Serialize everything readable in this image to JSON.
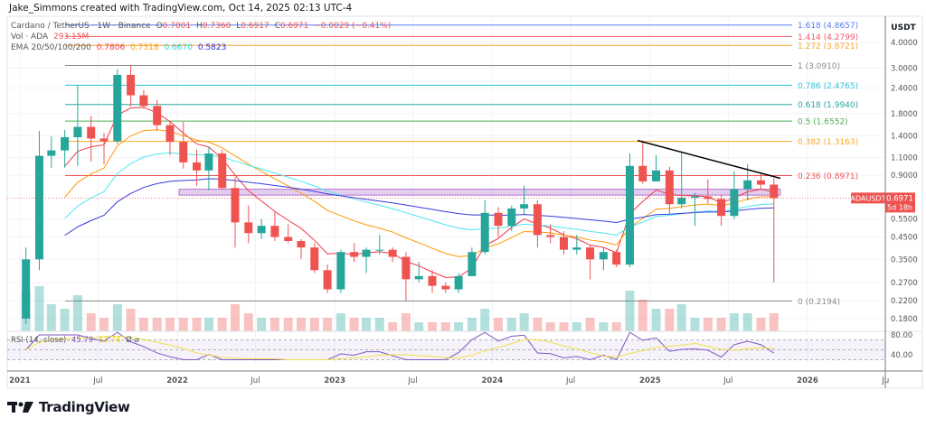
{
  "credit": "Jake_Simmons created with TradingView.com, Oct 14, 2025 02:13 UTC-4",
  "legend": {
    "symbol": "Cardano / TetherUS · 1W · Binance",
    "o_label": "O",
    "o": "0.7001",
    "h_label": "H",
    "h": "0.7360",
    "l_label": "L",
    "l": "0.6917",
    "c_label": "C",
    "c": "0.6971",
    "change": "−0.0029 (−0.41%)",
    "vol_label": "Vol · ADA",
    "vol": "293.15M",
    "ema_label": "EMA 20/50/100/200",
    "ema_values": [
      "0.7806",
      "0.7318",
      "0.6670",
      "0.5823"
    ],
    "rsi_label": "RSI (14, close)",
    "rsi_values": [
      "45.79",
      "53.74"
    ],
    "rsi_extra": "Ø  ⌀"
  },
  "colors": {
    "up": "#26a69a",
    "down": "#ef5350",
    "ema": [
      "#f23645",
      "#ff9800",
      "#4de6f0",
      "#3b3be0"
    ],
    "rsi": "#7e57c2",
    "rsi_ma": "#f2e14a",
    "zone": "#c9a6e0",
    "trendline": "#000000"
  },
  "chart_data": {
    "type": "candlestick",
    "title": "Cardano / TetherUS · 1W · Binance",
    "y_scale": "log",
    "y_unit": "USDT",
    "ylim": [
      0.156,
      5.37
    ],
    "xlim": [
      "2020-12-10",
      "2026-07-20"
    ],
    "y_ticks": [
      "4.0000",
      "3.0000",
      "2.4000",
      "1.8000",
      "1.4000",
      "1.1000",
      "0.9000",
      "0.5500",
      "0.4500",
      "0.3500",
      "0.2700",
      "0.2200",
      "0.1800"
    ],
    "x_ticks": [
      {
        "label": "2021",
        "date": "2021-01-01"
      },
      {
        "label": "Jul",
        "date": "2021-07-01"
      },
      {
        "label": "2022",
        "date": "2022-01-01"
      },
      {
        "label": "Jul",
        "date": "2022-07-01"
      },
      {
        "label": "2023",
        "date": "2023-01-01"
      },
      {
        "label": "Jul",
        "date": "2023-07-01"
      },
      {
        "label": "2024",
        "date": "2024-01-01"
      },
      {
        "label": "Jul",
        "date": "2024-07-01"
      },
      {
        "label": "2025",
        "date": "2025-01-01"
      },
      {
        "label": "Jul",
        "date": "2025-07-01"
      },
      {
        "label": "2026",
        "date": "2026-01-01"
      },
      {
        "label": "Ju",
        "date": "2026-07-01"
      }
    ],
    "grid": true,
    "candles_ohlc": [
      [
        "2021-01",
        0.18,
        0.4,
        0.17,
        0.35
      ],
      [
        "2021-02",
        0.35,
        1.48,
        0.31,
        1.12
      ],
      [
        "2021-03",
        1.12,
        1.39,
        0.98,
        1.19
      ],
      [
        "2021-04",
        1.19,
        1.5,
        0.98,
        1.38
      ],
      [
        "2021-05",
        1.38,
        2.47,
        1.0,
        1.55
      ],
      [
        "2021-06",
        1.55,
        1.75,
        1.05,
        1.36
      ],
      [
        "2021-07",
        1.36,
        1.45,
        1.02,
        1.32
      ],
      [
        "2021-08",
        1.32,
        2.96,
        1.28,
        2.78
      ],
      [
        "2021-09",
        2.78,
        3.1,
        1.95,
        2.21
      ],
      [
        "2021-10",
        2.21,
        2.35,
        1.9,
        1.96
      ],
      [
        "2021-11",
        1.96,
        2.1,
        1.48,
        1.58
      ],
      [
        "2021-12",
        1.58,
        1.65,
        1.13,
        1.31
      ],
      [
        "2022-01",
        1.31,
        1.64,
        0.97,
        1.04
      ],
      [
        "2022-02",
        1.04,
        1.2,
        0.8,
        0.95
      ],
      [
        "2022-03",
        0.95,
        1.24,
        0.76,
        1.15
      ],
      [
        "2022-04",
        1.15,
        1.2,
        0.77,
        0.78
      ],
      [
        "2022-05",
        0.78,
        0.88,
        0.4,
        0.53
      ],
      [
        "2022-06",
        0.53,
        0.64,
        0.42,
        0.47
      ],
      [
        "2022-07",
        0.47,
        0.55,
        0.44,
        0.51
      ],
      [
        "2022-08",
        0.51,
        0.6,
        0.43,
        0.45
      ],
      [
        "2022-09",
        0.45,
        0.52,
        0.42,
        0.43
      ],
      [
        "2022-10",
        0.43,
        0.44,
        0.35,
        0.4
      ],
      [
        "2022-11",
        0.4,
        0.42,
        0.3,
        0.31
      ],
      [
        "2022-12",
        0.31,
        0.33,
        0.24,
        0.25
      ],
      [
        "2023-01",
        0.25,
        0.39,
        0.24,
        0.38
      ],
      [
        "2023-02",
        0.38,
        0.42,
        0.34,
        0.36
      ],
      [
        "2023-03",
        0.36,
        0.4,
        0.3,
        0.39
      ],
      [
        "2023-04",
        0.39,
        0.46,
        0.37,
        0.39
      ],
      [
        "2023-05",
        0.39,
        0.4,
        0.34,
        0.36
      ],
      [
        "2023-06",
        0.36,
        0.38,
        0.22,
        0.28
      ],
      [
        "2023-07",
        0.28,
        0.34,
        0.27,
        0.29
      ],
      [
        "2023-08",
        0.29,
        0.31,
        0.24,
        0.26
      ],
      [
        "2023-09",
        0.26,
        0.27,
        0.24,
        0.25
      ],
      [
        "2023-10",
        0.25,
        0.3,
        0.24,
        0.29
      ],
      [
        "2023-11",
        0.29,
        0.4,
        0.29,
        0.38
      ],
      [
        "2023-12",
        0.38,
        0.68,
        0.37,
        0.59
      ],
      [
        "2024-01",
        0.59,
        0.63,
        0.45,
        0.51
      ],
      [
        "2024-02",
        0.51,
        0.64,
        0.48,
        0.62
      ],
      [
        "2024-03",
        0.62,
        0.8,
        0.58,
        0.65
      ],
      [
        "2024-04",
        0.65,
        0.68,
        0.4,
        0.46
      ],
      [
        "2024-05",
        0.46,
        0.52,
        0.42,
        0.45
      ],
      [
        "2024-06",
        0.45,
        0.48,
        0.37,
        0.39
      ],
      [
        "2024-07",
        0.39,
        0.46,
        0.37,
        0.4
      ],
      [
        "2024-08",
        0.4,
        0.41,
        0.28,
        0.35
      ],
      [
        "2024-09",
        0.35,
        0.4,
        0.31,
        0.38
      ],
      [
        "2024-10",
        0.38,
        0.39,
        0.32,
        0.33
      ],
      [
        "2024-11",
        0.33,
        1.15,
        0.32,
        1.0
      ],
      [
        "2024-12",
        1.0,
        1.33,
        0.82,
        0.84
      ],
      [
        "2025-01",
        0.84,
        1.13,
        0.84,
        0.95
      ],
      [
        "2025-02",
        0.95,
        0.99,
        0.58,
        0.65
      ],
      [
        "2025-03",
        0.65,
        1.17,
        0.62,
        0.7
      ],
      [
        "2025-04",
        0.7,
        0.74,
        0.51,
        0.71
      ],
      [
        "2025-05",
        0.71,
        0.86,
        0.66,
        0.69
      ],
      [
        "2025-06",
        0.69,
        0.72,
        0.51,
        0.57
      ],
      [
        "2025-07",
        0.57,
        0.94,
        0.55,
        0.77
      ],
      [
        "2025-08",
        0.77,
        1.02,
        0.68,
        0.85
      ],
      [
        "2025-09",
        0.85,
        0.92,
        0.77,
        0.81
      ],
      [
        "2025-10",
        0.81,
        0.87,
        0.27,
        0.6971
      ]
    ],
    "volume_rel": [
      9,
      10,
      6,
      5,
      8,
      4,
      3,
      6,
      5,
      3,
      3,
      3,
      3,
      3,
      3,
      3,
      6,
      4,
      3,
      3,
      3,
      3,
      3,
      3,
      4,
      3,
      3,
      3,
      2,
      4,
      2,
      2,
      2,
      2,
      3,
      5,
      3,
      3,
      4,
      3,
      2,
      2,
      2,
      3,
      2,
      2,
      9,
      7,
      5,
      5,
      6,
      3,
      3,
      3,
      4,
      4,
      3,
      4
    ],
    "fib_levels": [
      {
        "ratio": "1.618",
        "price": "4.8657",
        "value": 4.8657,
        "color": "#5b7cf0"
      },
      {
        "ratio": "1.414",
        "price": "4.2799",
        "value": 4.2799,
        "color": "#f05a6a"
      },
      {
        "ratio": "1.272",
        "price": "3.8721",
        "value": 3.8721,
        "color": "#f7a531"
      },
      {
        "ratio": "1",
        "price": "3.0910",
        "value": 3.091,
        "color": "#8a8a8a"
      },
      {
        "ratio": "0.786",
        "price": "2.4765",
        "value": 2.4765,
        "color": "#26c6da"
      },
      {
        "ratio": "0.618",
        "price": "1.9940",
        "value": 1.994,
        "color": "#26a69a"
      },
      {
        "ratio": "0.5",
        "price": "1.6552",
        "value": 1.6552,
        "color": "#4caf50"
      },
      {
        "ratio": "0.382",
        "price": "1.3163",
        "value": 1.3163,
        "color": "#f9a825"
      },
      {
        "ratio": "0.236",
        "price": "0.8971",
        "value": 0.8971,
        "color": "#ef5350"
      },
      {
        "ratio": "0",
        "price": "0.2194",
        "value": 0.2194,
        "color": "#8a8a8a"
      }
    ],
    "support_zone": {
      "from": "2022-01-05",
      "to": "2025-10-30",
      "low": 0.72,
      "high": 0.77
    },
    "trendline": {
      "from": [
        "2024-12-03",
        1.33
      ],
      "to": [
        "2025-10-30",
        0.87
      ]
    },
    "last_price": {
      "symbol": "ADAUSDT",
      "price": "0.6971",
      "countdown": "5d 18h"
    },
    "rsi_ticks": [
      "80.00",
      "40.00"
    ],
    "rsi_bands": [
      70,
      50,
      30
    ]
  },
  "footer": {
    "brand": "TradingView"
  }
}
